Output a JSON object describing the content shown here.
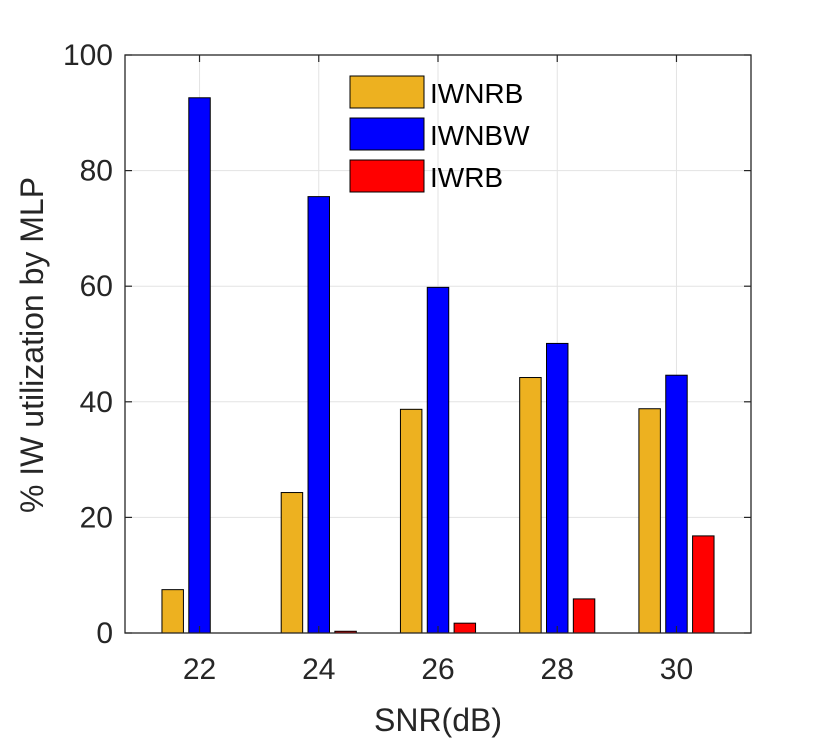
{
  "chart_data": {
    "type": "bar",
    "xlabel": "SNR(dB)",
    "ylabel": "% IW utilization by MLP",
    "categories": [
      "22",
      "24",
      "26",
      "28",
      "30"
    ],
    "ylim": [
      0,
      100
    ],
    "yticks": [
      0,
      20,
      40,
      60,
      80,
      100
    ],
    "grid": true,
    "legend_position": "top-center",
    "series": [
      {
        "name": "IWNRB",
        "color": "#EDB120",
        "values": [
          7.5,
          24.3,
          38.7,
          44.2,
          38.8
        ]
      },
      {
        "name": "IWNBW",
        "color": "#0000FF",
        "values": [
          92.6,
          75.5,
          59.8,
          50.1,
          44.6
        ]
      },
      {
        "name": "IWRB",
        "color": "#FF0000",
        "values": [
          0,
          0.3,
          1.7,
          5.9,
          16.8
        ]
      }
    ]
  }
}
